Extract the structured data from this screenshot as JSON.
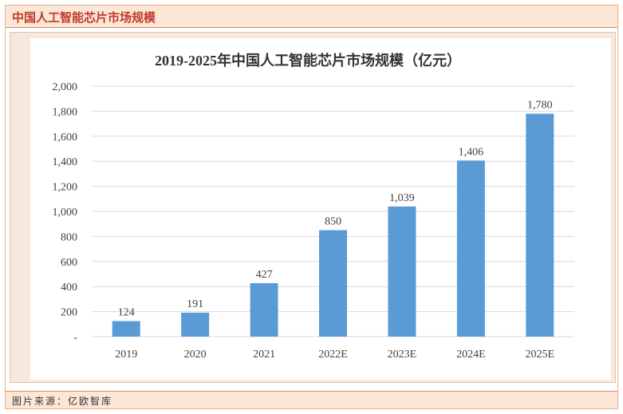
{
  "header": {
    "title": "中国人工智能芯片市场规模"
  },
  "footer": {
    "source": "图片来源：亿欧智库"
  },
  "colors": {
    "bar": "#5b9bd5",
    "grid": "#d9d9d9",
    "header_text": "#c0392b",
    "header_bg": "#fce6d6"
  },
  "chart_data": {
    "type": "bar",
    "title": "2019-2025年中国人工智能芯片市场规模（亿元）",
    "xlabel": "",
    "ylabel": "",
    "categories": [
      "2019",
      "2020",
      "2021",
      "2022E",
      "2023E",
      "2024E",
      "2025E"
    ],
    "values": [
      124,
      191,
      427,
      850,
      1039,
      1406,
      1780
    ],
    "value_labels": [
      "124",
      "191",
      "427",
      "850",
      "1,039",
      "1,406",
      "1,780"
    ],
    "ylim": [
      0,
      2000
    ],
    "yticks": [
      0,
      200,
      400,
      600,
      800,
      1000,
      1200,
      1400,
      1600,
      1800,
      2000
    ],
    "ytick_labels": [
      "-",
      "200",
      "400",
      "600",
      "800",
      "1,000",
      "1,200",
      "1,400",
      "1,600",
      "1,800",
      "2,000"
    ],
    "grid": true,
    "legend": "none"
  }
}
